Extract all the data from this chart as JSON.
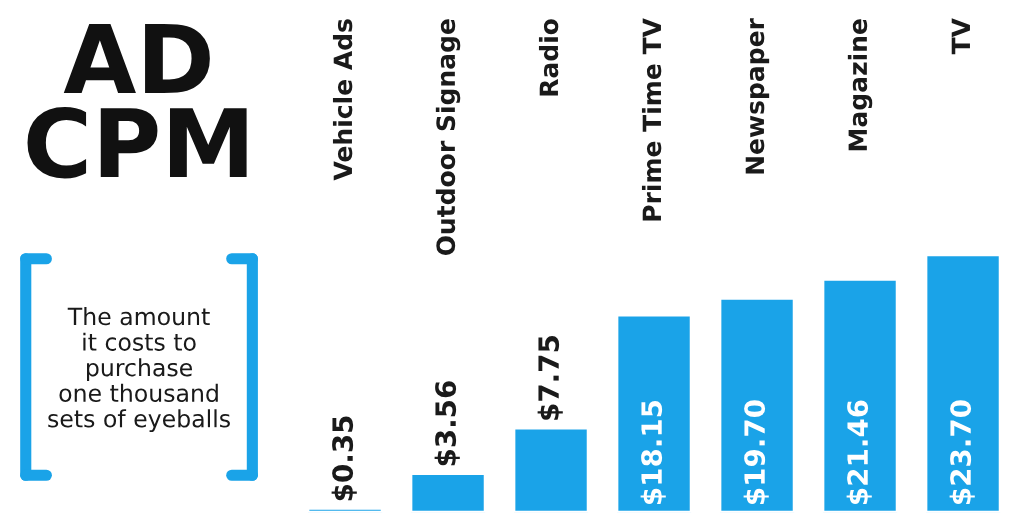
{
  "chart_data": {
    "type": "bar",
    "title": "AD\nCPM",
    "subtitle": "The amount\nit costs to\npurchase\none thousand\nsets of eyeballs",
    "categories": [
      "Vehicle Ads",
      "Outdoor Signage",
      "Radio",
      "Prime Time TV",
      "Newspaper",
      "Magazine",
      "TV"
    ],
    "values": [
      0.35,
      3.56,
      7.75,
      18.15,
      19.7,
      21.46,
      23.7
    ],
    "value_labels": [
      "$0.35",
      "$3.56",
      "$7.75",
      "$18.15",
      "$19.70",
      "$21.46",
      "$23.70"
    ],
    "color": "#1aa3e8"
  }
}
